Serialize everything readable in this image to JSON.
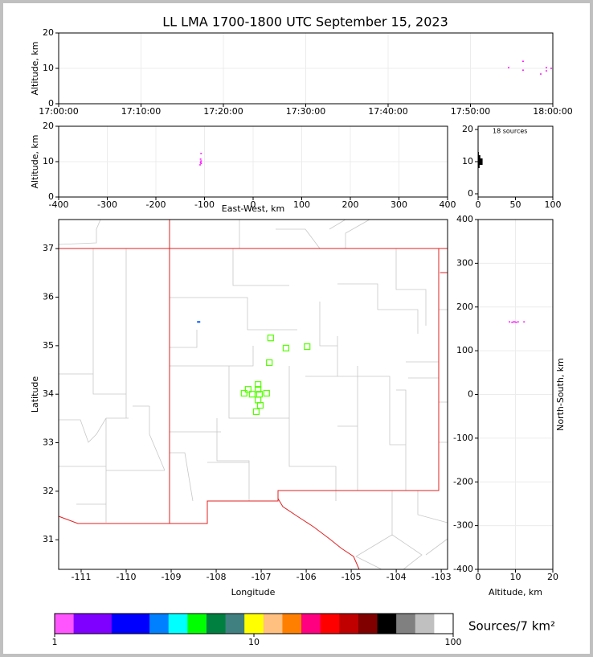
{
  "title": "LL LMA 1700-1800 UTC September 15, 2023",
  "chart_data": [
    {
      "type": "time_altitude",
      "ylabel": "Altitude, km",
      "xlim": [
        "17:00:00",
        "18:00:00"
      ],
      "xticks": [
        "17:00:00",
        "17:10:00",
        "17:20:00",
        "17:30:00",
        "17:40:00",
        "17:50:00",
        "18:00:00"
      ],
      "ylim": [
        0,
        20
      ],
      "yticks": [
        0,
        10,
        20
      ],
      "grid": true,
      "color": "#ff00ff",
      "x": [
        "17:54:38",
        "17:56:23",
        "17:56:23",
        "17:58:32",
        "17:59:13",
        "17:59:13",
        "17:59:48"
      ],
      "values": [
        10.2,
        12.0,
        9.5,
        8.4,
        10.2,
        9.3,
        10.0
      ]
    },
    {
      "type": "ew_altitude",
      "xlabel": "East-West, km",
      "ylabel": "Altitude, km",
      "xlim": [
        -400,
        400
      ],
      "xticks": [
        -400,
        -300,
        -200,
        -100,
        0,
        100,
        200,
        300,
        400
      ],
      "ylim": [
        0,
        20
      ],
      "yticks": [
        0,
        10,
        20
      ],
      "grid": true,
      "color": "#ff00ff",
      "x": [
        -107,
        -108,
        -107,
        -108,
        -109,
        -107
      ],
      "values": [
        12.3,
        10.7,
        10.2,
        9.8,
        9.1,
        9.5
      ]
    },
    {
      "type": "histogram",
      "annotation": "18 sources",
      "xlim": [
        0,
        100
      ],
      "xticks": [
        0,
        50,
        100
      ],
      "ylim": [
        -1,
        21
      ],
      "yticks": [
        0,
        10,
        20
      ],
      "color": "#000000",
      "bins": [
        8,
        9,
        10,
        11,
        12,
        13
      ],
      "values": [
        2,
        6,
        6,
        3,
        1
      ]
    },
    {
      "type": "map",
      "xlabel": "Longitude",
      "ylabel": "Latitude",
      "xlim": [
        -111.5,
        -102.86
      ],
      "ylim": [
        30.39,
        37.6
      ],
      "xticks": [
        -111,
        -110,
        -109,
        -108,
        -107,
        -106,
        -105,
        -104,
        -103
      ],
      "yticks": [
        31,
        32,
        33,
        34,
        35,
        36,
        37
      ],
      "color": "#55ff00",
      "x": [
        -106.79,
        -106.45,
        -105.98,
        -106.82,
        -107.07,
        -107.29,
        -107.07,
        -107.38,
        -107.2,
        -107.04,
        -106.88,
        -107.07,
        -107.02,
        -107.11
      ],
      "values": [
        35.16,
        34.95,
        34.98,
        34.65,
        34.2,
        34.1,
        34.1,
        34.02,
        34.0,
        34.0,
        34.02,
        33.88,
        33.77,
        33.64
      ],
      "dense_x": [
        -108.39
      ],
      "dense_values": [
        35.49
      ],
      "dense_color": "#0055ff"
    },
    {
      "type": "ns_altitude",
      "xlabel": "Altitude, km",
      "ylabel": "North-South, km",
      "xlim": [
        0,
        20
      ],
      "xticks": [
        0,
        10,
        20
      ],
      "ylim": [
        -400,
        400
      ],
      "yticks": [
        -400,
        -300,
        -200,
        -100,
        0,
        100,
        200,
        300,
        400
      ],
      "grid": true,
      "color": "#ff00ff",
      "x": [
        8.4,
        9.1,
        9.5,
        9.8,
        10.2,
        10.7,
        12.3
      ],
      "values": [
        166,
        165,
        166,
        166,
        165,
        166,
        166
      ]
    },
    {
      "type": "colorbar",
      "label": "Sources/7 km²",
      "xlim": [
        1,
        100
      ],
      "xticks": [
        1,
        10,
        100
      ],
      "log": true,
      "colors": [
        "#ff55ff",
        "#8000ff",
        "#8000ff",
        "#0000ff",
        "#0000ff",
        "#0080ff",
        "#00ffff",
        "#00ff00",
        "#008040",
        "#408080",
        "#ffff00",
        "#ffc080",
        "#ff8000",
        "#ff0080",
        "#ff0000",
        "#c00000",
        "#800000",
        "#000000",
        "#808080",
        "#c0c0c0",
        "#ffffff"
      ]
    }
  ]
}
